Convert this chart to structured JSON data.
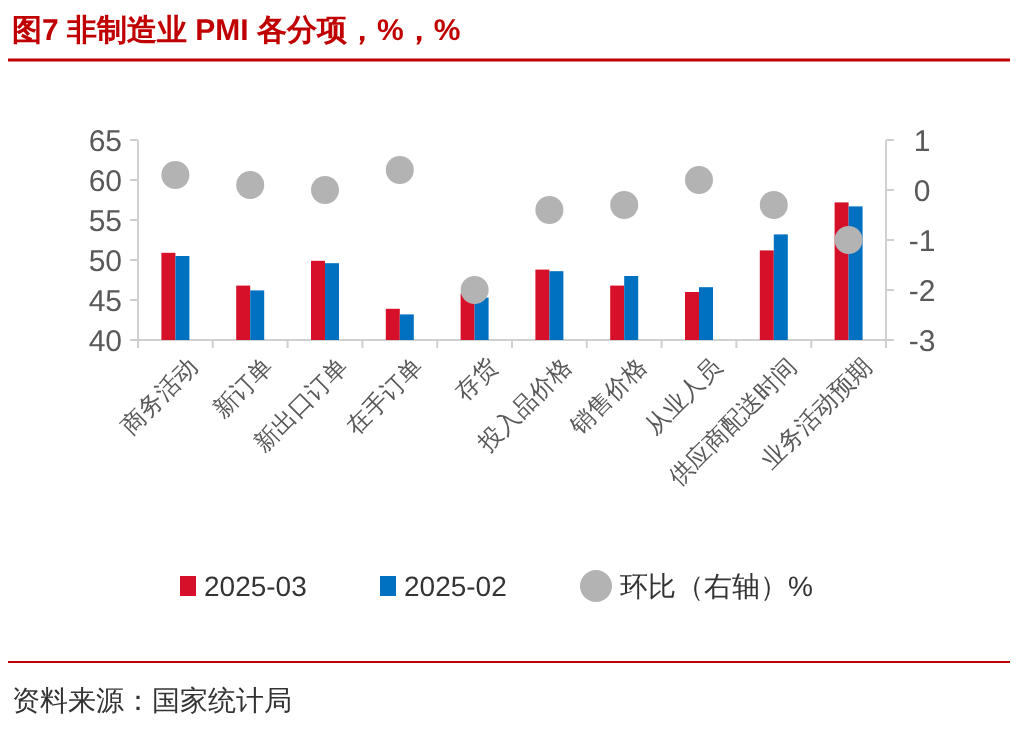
{
  "chart_data": {
    "type": "bar",
    "title": "图7  非制造业 PMI 各分项，%，%",
    "categories": [
      "商务活动",
      "新订单",
      "新出口订单",
      "在手订单",
      "存货",
      "投入品价格",
      "销售价格",
      "从业人员",
      "供应商配送时间",
      "业务活动预期"
    ],
    "series": [
      {
        "name": "2025-03",
        "color": "#d7102a",
        "values": [
          50.9,
          46.8,
          49.9,
          43.9,
          45.8,
          48.8,
          46.8,
          46.0,
          51.2,
          57.2
        ]
      },
      {
        "name": "2025-02",
        "color": "#0070c0",
        "values": [
          50.5,
          46.2,
          49.6,
          43.2,
          45.3,
          48.6,
          48.0,
          46.6,
          53.2,
          56.7
        ]
      },
      {
        "name": "环比（右轴）%",
        "type": "scatter",
        "axis": "y2",
        "color": "#b3b3b3",
        "values": [
          0.3,
          0.1,
          0.0,
          0.4,
          -2.0,
          -0.4,
          -0.3,
          0.2,
          -0.3,
          -1.0
        ]
      }
    ],
    "ylim": [
      40,
      65
    ],
    "yticks": [
      40,
      45,
      50,
      55,
      60,
      65
    ],
    "y2lim": [
      -3,
      1
    ],
    "y2ticks": [
      -3,
      -2,
      -1,
      0,
      1
    ],
    "legend": "bottom",
    "marker": "circle",
    "annotations": [
      "资料来源：国家统计局"
    ]
  }
}
